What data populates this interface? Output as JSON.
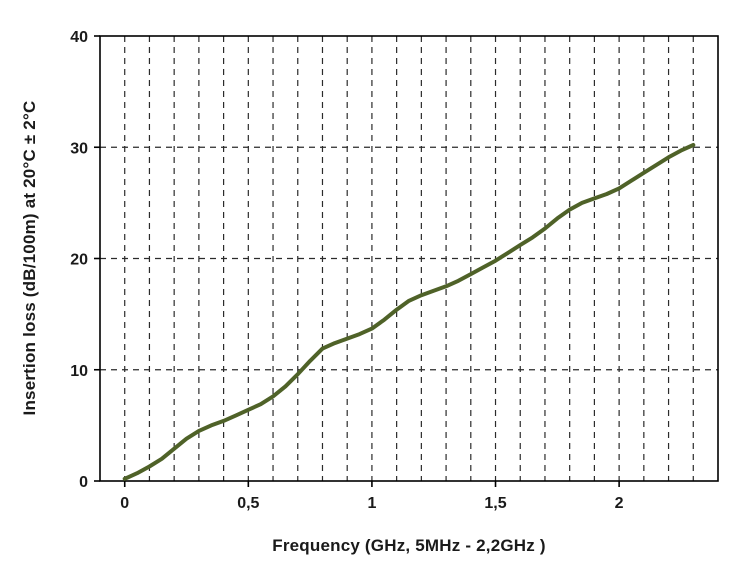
{
  "chart_data": {
    "type": "line",
    "title": "",
    "xlabel": "Frequency (GHz, 5MHz - 2,2GHz )",
    "ylabel": "Insertion loss (dB/100m) at 20°C ± 2°C",
    "xlim": [
      -0.1,
      2.4
    ],
    "ylim": [
      0,
      40
    ],
    "x_minor_grid_step": 0.1,
    "grid_style": "dashed",
    "grid_color": "#2b2b2b",
    "axis_color": "#000000",
    "x_major_ticks": [
      {
        "v": 0,
        "label": "0"
      },
      {
        "v": 0.5,
        "label": "0,5"
      },
      {
        "v": 1,
        "label": "1"
      },
      {
        "v": 1.5,
        "label": "1,5"
      },
      {
        "v": 2,
        "label": "2"
      }
    ],
    "y_major_ticks": [
      {
        "v": 0,
        "label": "0"
      },
      {
        "v": 10,
        "label": "10"
      },
      {
        "v": 20,
        "label": "20"
      },
      {
        "v": 30,
        "label": "30"
      },
      {
        "v": 40,
        "label": "40"
      }
    ],
    "series": [
      {
        "name": "Insertion loss",
        "color": "#4F6228",
        "line_width": 4,
        "x": [
          0,
          0.05,
          0.1,
          0.15,
          0.2,
          0.25,
          0.3,
          0.35,
          0.4,
          0.45,
          0.5,
          0.55,
          0.6,
          0.65,
          0.7,
          0.75,
          0.8,
          0.85,
          0.9,
          0.95,
          1.0,
          1.05,
          1.1,
          1.15,
          1.2,
          1.25,
          1.3,
          1.35,
          1.4,
          1.45,
          1.5,
          1.55,
          1.6,
          1.65,
          1.7,
          1.75,
          1.8,
          1.85,
          1.9,
          1.95,
          2.0,
          2.05,
          2.1,
          2.15,
          2.2,
          2.25,
          2.3
        ],
        "y": [
          0.2,
          0.7,
          1.3,
          2.0,
          2.9,
          3.8,
          4.5,
          5.0,
          5.4,
          5.9,
          6.4,
          6.9,
          7.6,
          8.5,
          9.6,
          10.8,
          11.9,
          12.4,
          12.8,
          13.2,
          13.7,
          14.5,
          15.4,
          16.2,
          16.7,
          17.1,
          17.5,
          18.0,
          18.6,
          19.2,
          19.8,
          20.5,
          21.2,
          21.9,
          22.7,
          23.6,
          24.4,
          25.0,
          25.4,
          25.8,
          26.3,
          27.0,
          27.7,
          28.4,
          29.1,
          29.7,
          30.2
        ]
      }
    ]
  }
}
